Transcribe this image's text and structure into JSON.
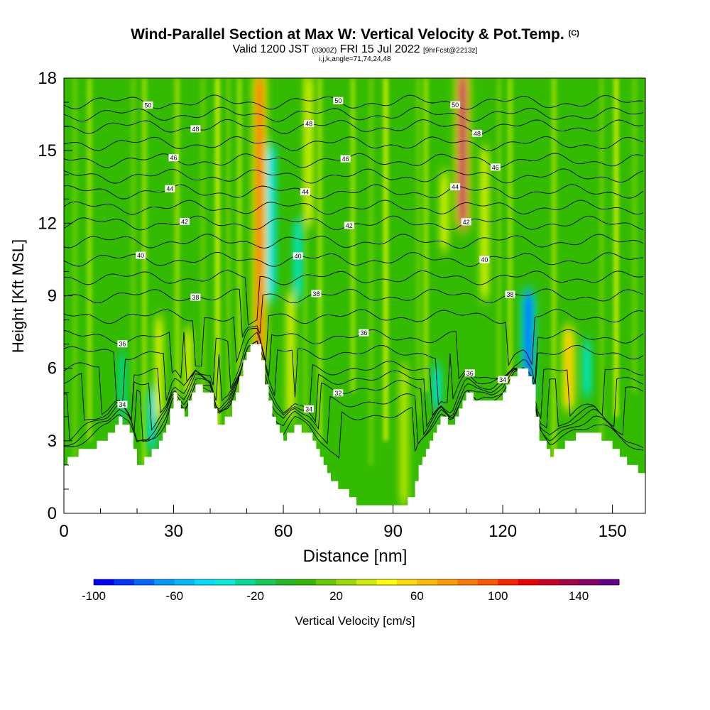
{
  "header": {
    "title": "Wind-Parallel Section at Max W: Vertical Velocity & Pot.Temp.",
    "copyright": "(C)",
    "valid_prefix": "Valid 1200 JST",
    "valid_utc": "(0300Z)",
    "valid_date": "FRI 15 Jul 2022",
    "forecast_info": "[9hrFcst@2213z]",
    "grid_info": "i,j,k,angle=71,74,24,48"
  },
  "chart_data": {
    "type": "heatmap",
    "xlabel": "Distance [nm]",
    "ylabel": "Height [Kft MSL]",
    "xlim": [
      0,
      159
    ],
    "ylim": [
      0,
      18
    ],
    "x_ticks": [
      0,
      30,
      60,
      90,
      120,
      150
    ],
    "y_ticks": [
      0,
      3,
      6,
      9,
      12,
      15,
      18
    ],
    "terrain_kft": [
      [
        0,
        2.1
      ],
      [
        5,
        2.6
      ],
      [
        8,
        2.8
      ],
      [
        12,
        3.2
      ],
      [
        15,
        3.9
      ],
      [
        18,
        3.3
      ],
      [
        20,
        2.0
      ],
      [
        23,
        2.4
      ],
      [
        25,
        2.8
      ],
      [
        28,
        3.7
      ],
      [
        30,
        4.9
      ],
      [
        33,
        4.1
      ],
      [
        36,
        5.3
      ],
      [
        40,
        5.0
      ],
      [
        42,
        3.5
      ],
      [
        45,
        4.1
      ],
      [
        48,
        5.6
      ],
      [
        50,
        6.8
      ],
      [
        53,
        7.1
      ],
      [
        56,
        4.6
      ],
      [
        58,
        3.5
      ],
      [
        60,
        3.0
      ],
      [
        63,
        3.7
      ],
      [
        67,
        3.2
      ],
      [
        70,
        2.2
      ],
      [
        73,
        1.4
      ],
      [
        77,
        0.9
      ],
      [
        80,
        0.5
      ],
      [
        84,
        0.3
      ],
      [
        88,
        0.35
      ],
      [
        91,
        0.4
      ],
      [
        93,
        0.3
      ],
      [
        95,
        0.8
      ],
      [
        97,
        1.9
      ],
      [
        100,
        2.9
      ],
      [
        103,
        4.0
      ],
      [
        106,
        3.5
      ],
      [
        108,
        4.4
      ],
      [
        110,
        5.1
      ],
      [
        113,
        4.6
      ],
      [
        117,
        4.5
      ],
      [
        120,
        4.9
      ],
      [
        123,
        5.8
      ],
      [
        126,
        6.0
      ],
      [
        128,
        5.2
      ],
      [
        130,
        3.1
      ],
      [
        133,
        2.4
      ],
      [
        136,
        2.8
      ],
      [
        140,
        3.2
      ],
      [
        145,
        3.4
      ],
      [
        150,
        2.7
      ],
      [
        154,
        2.1
      ],
      [
        157,
        1.8
      ],
      [
        159,
        1.7
      ]
    ],
    "updraft_cores": [
      {
        "x": 53.5,
        "y0": 6.5,
        "y1": 18,
        "w_cm_s": 110
      },
      {
        "x": 109,
        "y0": 12,
        "y1": 18,
        "w_cm_s": 150
      },
      {
        "x": 138,
        "y0": 4.5,
        "y1": 7.5,
        "w_cm_s": 70
      },
      {
        "x": 115,
        "y0": 9,
        "y1": 15,
        "w_cm_s": 40
      },
      {
        "x": 104,
        "y0": 11,
        "y1": 14,
        "w_cm_s": 40
      },
      {
        "x": 26,
        "y0": 4,
        "y1": 8,
        "w_cm_s": 40
      },
      {
        "x": 34,
        "y0": 5,
        "y1": 7.5,
        "w_cm_s": 40
      },
      {
        "x": 62,
        "y0": 4,
        "y1": 9,
        "w_cm_s": 40
      },
      {
        "x": 67,
        "y0": 12,
        "y1": 18,
        "w_cm_s": 40
      },
      {
        "x": 93,
        "y0": 0.5,
        "y1": 6,
        "w_cm_s": 30
      }
    ],
    "downdraft_cores": [
      {
        "x": 127,
        "y0": 5,
        "y1": 9,
        "w_cm_s": -100
      },
      {
        "x": 56.5,
        "y0": 9,
        "y1": 15,
        "w_cm_s": -50
      },
      {
        "x": 64,
        "y0": 9,
        "y1": 12,
        "w_cm_s": -40
      },
      {
        "x": 102,
        "y0": 4.5,
        "y1": 6,
        "w_cm_s": -45
      },
      {
        "x": 24,
        "y0": 2.8,
        "y1": 5,
        "w_cm_s": -45
      },
      {
        "x": 16,
        "y0": 4,
        "y1": 6.5,
        "w_cm_s": -30
      },
      {
        "x": 143,
        "y0": 5,
        "y1": 7,
        "w_cm_s": -35
      }
    ],
    "theta_contours": [
      {
        "level": 50,
        "label": "50",
        "base_kft": 17.0,
        "label_x": [
          23,
          75,
          107
        ]
      },
      {
        "level": 48,
        "label": "48",
        "base_kft": 16.0,
        "label_x": [
          36,
          67,
          113
        ]
      },
      {
        "level": 46,
        "label": "46",
        "base_kft": 14.6,
        "label_x": [
          30,
          77,
          118
        ]
      },
      {
        "level": 44,
        "label": "44",
        "base_kft": 13.3,
        "label_x": [
          29,
          66,
          107
        ]
      },
      {
        "level": 42,
        "label": "42",
        "base_kft": 12.0,
        "label_x": [
          33,
          78,
          110
        ]
      },
      {
        "level": 40,
        "label": "40",
        "base_kft": 10.5,
        "label_x": [
          21,
          64,
          115
        ]
      },
      {
        "level": 38,
        "label": "38",
        "base_kft": 9.0,
        "label_x": [
          36,
          69,
          122
        ]
      },
      {
        "level": 36,
        "label": "36",
        "base_kft": 7.3,
        "label_x": [
          16,
          82,
          111
        ]
      },
      {
        "level": 34,
        "label": "34",
        "base_kft": 6.0,
        "label_x": [
          16,
          67,
          120
        ]
      },
      {
        "level": 32,
        "label": "32",
        "base_kft": 5.2,
        "label_x": [
          75
        ]
      }
    ],
    "colorbar": {
      "label": "Vertical Velocity [cm/s]",
      "min": -100,
      "max": 160,
      "step": 10,
      "tick_labels": [
        "-100",
        "-60",
        "-20",
        "20",
        "60",
        "100",
        "140"
      ],
      "tick_values": [
        -100,
        -60,
        -20,
        20,
        60,
        100,
        140
      ],
      "colors": [
        "#0000ff",
        "#0033ff",
        "#0066ff",
        "#0099ff",
        "#00bbff",
        "#00ddff",
        "#00eedd",
        "#00dd99",
        "#11cc55",
        "#22bb22",
        "#33bb00",
        "#66cc00",
        "#99dd00",
        "#ccee00",
        "#ffff00",
        "#ffdd00",
        "#ffbb00",
        "#ff9900",
        "#ff7700",
        "#ff5500",
        "#ff2200",
        "#ee0000",
        "#cc0022",
        "#aa0044",
        "#880066",
        "#660088"
      ]
    },
    "grid": false
  }
}
